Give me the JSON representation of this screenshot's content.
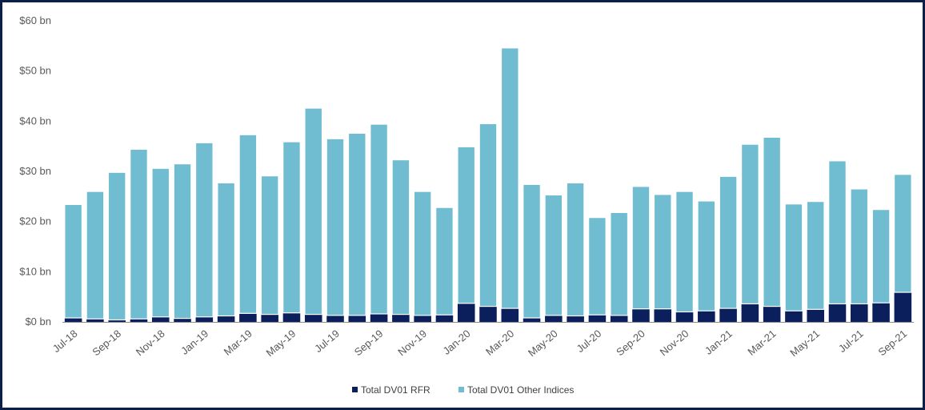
{
  "chart_data": {
    "type": "bar",
    "stacked": true,
    "title": "",
    "xlabel": "",
    "ylabel": "",
    "ylim": [
      0,
      60
    ],
    "y_ticks": [
      0,
      10,
      20,
      30,
      40,
      50,
      60
    ],
    "y_tick_labels": [
      "$0 bn",
      "$10 bn",
      "$20 bn",
      "$30 bn",
      "$40 bn",
      "$50 bn",
      "$60 bn"
    ],
    "grid": false,
    "legend_position": "bottom-center",
    "categories": [
      "Jul-18",
      "Aug-18",
      "Sep-18",
      "Oct-18",
      "Nov-18",
      "Dec-18",
      "Jan-19",
      "Feb-19",
      "Mar-19",
      "Apr-19",
      "May-19",
      "Jun-19",
      "Jul-19",
      "Aug-19",
      "Sep-19",
      "Oct-19",
      "Nov-19",
      "Dec-19",
      "Jan-20",
      "Feb-20",
      "Mar-20",
      "Apr-20",
      "May-20",
      "Jun-20",
      "Jul-20",
      "Aug-20",
      "Sep-20",
      "Oct-20",
      "Nov-20",
      "Dec-20",
      "Jan-21",
      "Feb-21",
      "Mar-21",
      "Apr-21",
      "May-21",
      "Jun-21",
      "Jul-21",
      "Aug-21",
      "Sep-21"
    ],
    "x_tick_labels": [
      "Jul-18",
      "Sep-18",
      "Nov-18",
      "Jan-19",
      "Mar-19",
      "May-19",
      "Jul-19",
      "Sep-19",
      "Nov-19",
      "Jan-20",
      "Mar-20",
      "May-20",
      "Jul-20",
      "Sep-20",
      "Nov-20",
      "Jan-21",
      "Mar-21",
      "May-21",
      "Jul-21",
      "Sep-21"
    ],
    "series": [
      {
        "name": "Total DV01 RFR",
        "color": "#0b1f5c",
        "values": [
          0.8,
          0.6,
          0.4,
          0.6,
          1.0,
          0.7,
          1.0,
          1.2,
          1.7,
          1.5,
          1.8,
          1.5,
          1.3,
          1.3,
          1.6,
          1.5,
          1.3,
          1.4,
          3.7,
          3.1,
          2.7,
          0.8,
          1.3,
          1.2,
          1.4,
          1.3,
          2.6,
          2.6,
          2.0,
          2.2,
          2.7,
          3.6,
          3.1,
          2.2,
          2.5,
          3.6,
          3.6,
          3.8,
          5.9
        ]
      },
      {
        "name": "Total DV01 Other Indices",
        "color": "#70bcd1",
        "values": [
          22.6,
          25.4,
          29.4,
          33.8,
          29.6,
          30.8,
          34.7,
          26.5,
          35.6,
          27.6,
          34.1,
          41.1,
          35.2,
          36.3,
          37.8,
          30.8,
          24.7,
          21.4,
          31.2,
          36.4,
          51.9,
          26.6,
          24.0,
          26.5,
          19.4,
          20.5,
          24.4,
          22.8,
          24.0,
          21.9,
          26.3,
          31.8,
          33.7,
          21.3,
          21.5,
          28.5,
          22.9,
          18.6,
          23.5
        ]
      }
    ]
  }
}
